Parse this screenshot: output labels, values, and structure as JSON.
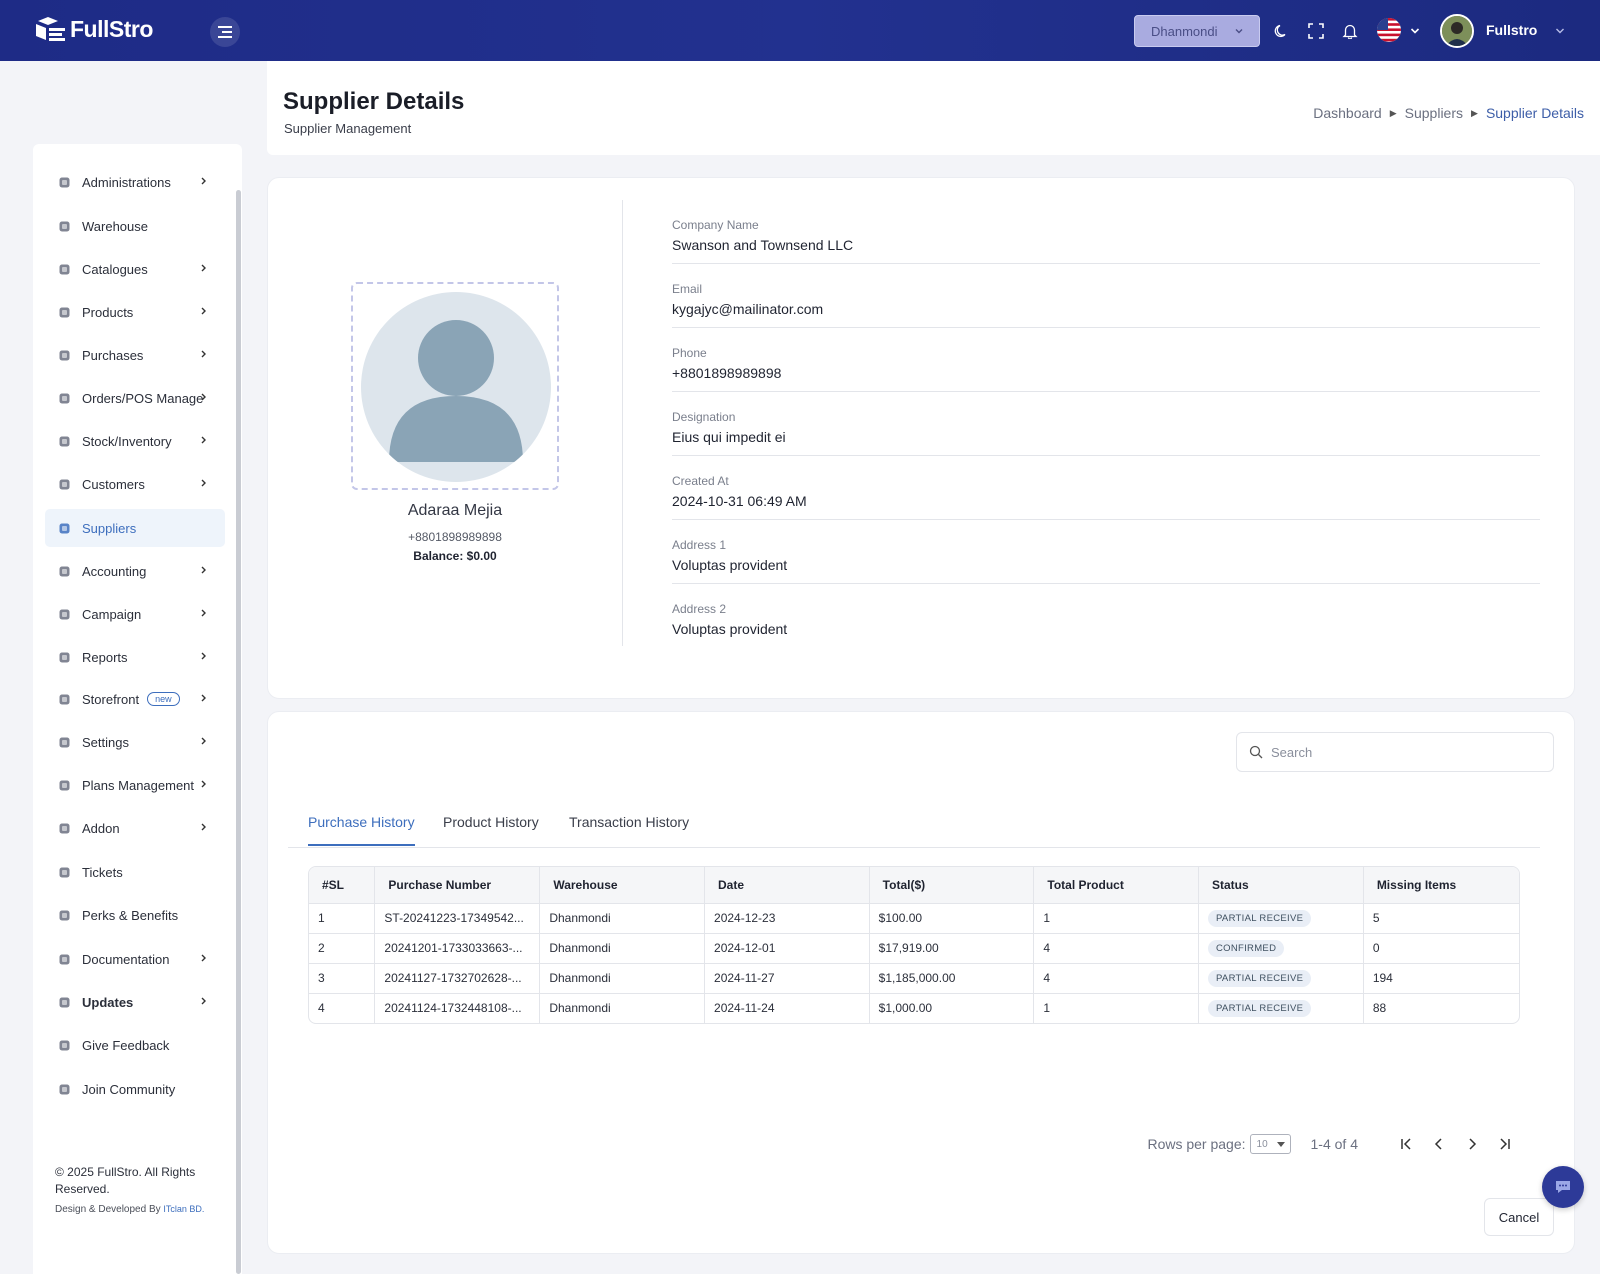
{
  "app": {
    "logo_text": "FullStro"
  },
  "topbar": {
    "branch": "Dhanmondi",
    "user_name": "Fullstro"
  },
  "sidebar": {
    "items": [
      {
        "label": "Administrations",
        "icon": "user-cog-icon",
        "has_children": true
      },
      {
        "label": "Warehouse",
        "icon": "warehouse-icon",
        "has_children": false
      },
      {
        "label": "Catalogues",
        "icon": "catalogue-icon",
        "has_children": true
      },
      {
        "label": "Products",
        "icon": "cart-icon",
        "has_children": true
      },
      {
        "label": "Purchases",
        "icon": "bag-icon",
        "has_children": true
      },
      {
        "label": "Orders/POS Manage",
        "icon": "clipboard-icon",
        "has_children": true
      },
      {
        "label": "Stock/Inventory",
        "icon": "box-icon",
        "has_children": true
      },
      {
        "label": "Customers",
        "icon": "users-icon",
        "has_children": true
      },
      {
        "label": "Suppliers",
        "icon": "supplier-icon",
        "has_children": false,
        "active": true
      },
      {
        "label": "Accounting",
        "icon": "ledger-icon",
        "has_children": true
      },
      {
        "label": "Campaign",
        "icon": "campaign-icon",
        "has_children": true
      },
      {
        "label": "Reports",
        "icon": "report-icon",
        "has_children": true
      },
      {
        "label": "Storefront",
        "icon": "storefront-icon",
        "has_children": true,
        "badge": "new"
      },
      {
        "label": "Settings",
        "icon": "gear-icon",
        "has_children": true
      },
      {
        "label": "Plans Management",
        "icon": "plans-icon",
        "has_children": true
      },
      {
        "label": "Addon",
        "icon": "addon-icon",
        "has_children": true
      },
      {
        "label": "Tickets",
        "icon": "ticket-icon",
        "has_children": false
      },
      {
        "label": "Perks & Benefits",
        "icon": "gift-icon",
        "has_children": false
      },
      {
        "label": "Documentation",
        "icon": "doc-icon",
        "has_children": true
      },
      {
        "label": "Updates",
        "icon": "updates-icon",
        "has_children": true,
        "bold": true
      },
      {
        "label": "Give Feedback",
        "icon": "feedback-icon",
        "has_children": false
      },
      {
        "label": "Join Community",
        "icon": "community-icon",
        "has_children": false
      }
    ],
    "copyright": "© 2025 FullStro. All Rights Reserved.",
    "credit_prefix": "Design & Developed By",
    "credit_brand": "ITclan BD."
  },
  "header": {
    "title": "Supplier Details",
    "subtitle": "Supplier Management",
    "breadcrumb": [
      "Dashboard",
      "Suppliers",
      "Supplier Details"
    ]
  },
  "profile": {
    "name": "Adaraa Mejia",
    "phone": "+8801898989898",
    "balance": "Balance: $0.00"
  },
  "details": [
    {
      "label": "Company Name",
      "value": "Swanson and Townsend LLC"
    },
    {
      "label": "Email",
      "value": "kygajyc@mailinator.com"
    },
    {
      "label": "Phone",
      "value": "+8801898989898"
    },
    {
      "label": "Designation",
      "value": "Eius qui impedit ei"
    },
    {
      "label": "Created At",
      "value": "2024-10-31 06:49 AM"
    },
    {
      "label": "Address 1",
      "value": "Voluptas provident"
    },
    {
      "label": "Address 2",
      "value": "Voluptas provident"
    }
  ],
  "history": {
    "search_placeholder": "Search",
    "tabs": [
      "Purchase History",
      "Product History",
      "Transaction History"
    ],
    "active_tab": 0,
    "columns": [
      "#SL",
      "Purchase Number",
      "Warehouse",
      "Date",
      "Total($)",
      "Total Product",
      "Status",
      "Missing Items"
    ],
    "rows": [
      [
        "1",
        "ST-20241223-17349542...",
        "Dhanmondi",
        "2024-12-23",
        "$100.00",
        "1",
        "PARTIAL RECEIVE",
        "5"
      ],
      [
        "2",
        "20241201-1733033663-...",
        "Dhanmondi",
        "2024-12-01",
        "$17,919.00",
        "4",
        "CONFIRMED",
        "0"
      ],
      [
        "3",
        "20241127-1732702628-...",
        "Dhanmondi",
        "2024-11-27",
        "$1,185,000.00",
        "4",
        "PARTIAL RECEIVE",
        "194"
      ],
      [
        "4",
        "20241124-1732448108-...",
        "Dhanmondi",
        "2024-11-24",
        "$1,000.00",
        "1",
        "PARTIAL RECEIVE",
        "88"
      ]
    ],
    "rows_per_page_label": "Rows per page:",
    "rows_per_page": "10",
    "range": "1-4 of 4",
    "cancel_label": "Cancel"
  }
}
